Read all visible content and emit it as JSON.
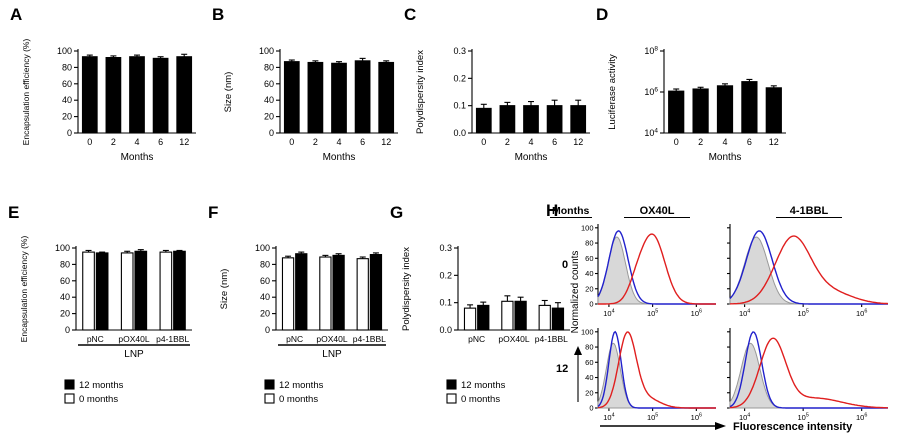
{
  "figure": {
    "background": "#ffffff"
  },
  "colors": {
    "bar_fill": "#000000",
    "open_bar_fill": "#ffffff",
    "flow_control_fill": "#d8d8d8",
    "flow_control_stroke": "#999999",
    "flow_blue": "#2121cc",
    "flow_red": "#e01f1f"
  },
  "chart_data": [
    {
      "panel": "A",
      "type": "bar",
      "title": "",
      "ylabel": "Encapsulation efficiency (%)",
      "ylabel_fs": 8.5,
      "xlabel": "Months",
      "categories": [
        "0",
        "2",
        "4",
        "6",
        "12"
      ],
      "values": [
        93,
        92,
        93,
        91,
        93
      ],
      "errors": [
        2,
        2,
        2,
        2,
        3
      ],
      "ylim": [
        0,
        100
      ],
      "yticks": [
        {
          "v": 0,
          "label": "0"
        },
        {
          "v": 20,
          "label": "20"
        },
        {
          "v": 40,
          "label": "40"
        },
        {
          "v": 60,
          "label": "60"
        },
        {
          "v": 80,
          "label": "80"
        },
        {
          "v": 100,
          "label": "100"
        }
      ]
    },
    {
      "panel": "B",
      "type": "bar",
      "title": "",
      "ylabel": "Size (nm)",
      "ylabel_fs": 9.5,
      "xlabel": "Months",
      "categories": [
        "0",
        "2",
        "4",
        "6",
        "12"
      ],
      "values": [
        87,
        86,
        85,
        88,
        86
      ],
      "errors": [
        2,
        2,
        2,
        3,
        2
      ],
      "ylim": [
        0,
        100
      ],
      "yticks": [
        {
          "v": 0,
          "label": "0"
        },
        {
          "v": 20,
          "label": "20"
        },
        {
          "v": 40,
          "label": "40"
        },
        {
          "v": 60,
          "label": "60"
        },
        {
          "v": 80,
          "label": "80"
        },
        {
          "v": 100,
          "label": "100"
        }
      ]
    },
    {
      "panel": "C",
      "type": "bar",
      "title": "",
      "ylabel": "Polydispersity index",
      "ylabel_fs": 9.5,
      "xlabel": "Months",
      "categories": [
        "0",
        "2",
        "4",
        "6",
        "12"
      ],
      "values": [
        0.09,
        0.1,
        0.1,
        0.1,
        0.1
      ],
      "errors": [
        0.015,
        0.012,
        0.015,
        0.02,
        0.02
      ],
      "ylim": [
        0,
        0.3
      ],
      "yticks": [
        {
          "v": 0,
          "label": "0.0"
        },
        {
          "v": 0.1,
          "label": "0.1"
        },
        {
          "v": 0.2,
          "label": "0.2"
        },
        {
          "v": 0.3,
          "label": "0.3"
        }
      ]
    },
    {
      "panel": "D",
      "type": "bar",
      "log": true,
      "title": "",
      "ylabel": "Luciferase activity",
      "ylabel_fs": 9.5,
      "xlabel": "Months",
      "categories": [
        "0",
        "2",
        "4",
        "6",
        "12"
      ],
      "values": [
        1100000.0,
        1400000.0,
        2000000.0,
        3200000.0,
        1600000.0
      ],
      "errors": [
        300000.0,
        300000.0,
        500000.0,
        900000.0,
        400000.0
      ],
      "ylim": [
        10000.0,
        100000000.0
      ],
      "yticks": [
        {
          "v": 10000.0,
          "label": "10^4"
        },
        {
          "v": 1000000.0,
          "label": "10^6"
        },
        {
          "v": 100000000.0,
          "label": "10^8"
        }
      ]
    },
    {
      "panel": "E",
      "type": "grouped-bar",
      "title": "",
      "ylabel": "Encapsulation efficiency (%)",
      "ylabel_fs": 8.5,
      "bracket": "LNP",
      "categories": [
        "pNC",
        "pOX40L",
        "p4-1BBL"
      ],
      "series": [
        {
          "name": "0 months",
          "fill": "#ffffff",
          "values": [
            95,
            94,
            95
          ],
          "errors": [
            2,
            2,
            2
          ]
        },
        {
          "name": "12 months",
          "fill": "#000000",
          "values": [
            94,
            96,
            96
          ],
          "errors": [
            1,
            2,
            1
          ]
        }
      ],
      "legend": [
        {
          "fill": "#000000",
          "label": "12 months"
        },
        {
          "fill": "#ffffff",
          "label": "0 months"
        }
      ],
      "ylim": [
        0,
        100
      ],
      "yticks": [
        {
          "v": 0,
          "label": "0"
        },
        {
          "v": 20,
          "label": "20"
        },
        {
          "v": 40,
          "label": "40"
        },
        {
          "v": 60,
          "label": "60"
        },
        {
          "v": 80,
          "label": "80"
        },
        {
          "v": 100,
          "label": "100"
        }
      ]
    },
    {
      "panel": "F",
      "type": "grouped-bar",
      "title": "",
      "ylabel": "Size (nm)",
      "ylabel_fs": 9.5,
      "bracket": "LNP",
      "categories": [
        "pNC",
        "pOX40L",
        "p4-1BBL"
      ],
      "series": [
        {
          "name": "0 months",
          "fill": "#ffffff",
          "values": [
            88,
            89,
            87
          ],
          "errors": [
            2,
            2,
            2
          ]
        },
        {
          "name": "12 months",
          "fill": "#000000",
          "values": [
            93,
            91,
            92
          ],
          "errors": [
            2,
            2,
            2
          ]
        }
      ],
      "legend": [
        {
          "fill": "#000000",
          "label": "12 months"
        },
        {
          "fill": "#ffffff",
          "label": "0 months"
        }
      ],
      "ylim": [
        0,
        100
      ],
      "yticks": [
        {
          "v": 0,
          "label": "0"
        },
        {
          "v": 20,
          "label": "20"
        },
        {
          "v": 40,
          "label": "40"
        },
        {
          "v": 60,
          "label": "60"
        },
        {
          "v": 80,
          "label": "80"
        },
        {
          "v": 100,
          "label": "100"
        }
      ]
    },
    {
      "panel": "G",
      "type": "grouped-bar",
      "title": "",
      "ylabel": "Polydispersity index",
      "ylabel_fs": 9.5,
      "bracket": "",
      "categories": [
        "pNC",
        "pOX40L",
        "p4-1BBL"
      ],
      "series": [
        {
          "name": "0 months",
          "fill": "#ffffff",
          "values": [
            0.08,
            0.105,
            0.09
          ],
          "errors": [
            0.012,
            0.02,
            0.018
          ]
        },
        {
          "name": "12 months",
          "fill": "#000000",
          "values": [
            0.09,
            0.105,
            0.08
          ],
          "errors": [
            0.012,
            0.015,
            0.02
          ]
        }
      ],
      "legend": [
        {
          "fill": "#000000",
          "label": "12 months"
        },
        {
          "fill": "#ffffff",
          "label": "0 months"
        }
      ],
      "ylim": [
        0,
        0.3
      ],
      "yticks": [
        {
          "v": 0,
          "label": "0.0"
        },
        {
          "v": 0.1,
          "label": "0.1"
        },
        {
          "v": 0.2,
          "label": "0.2"
        },
        {
          "v": 0.3,
          "label": "0.3"
        }
      ]
    },
    {
      "panel": "H",
      "type": "histogram-grid",
      "row_header": "Months",
      "rows": [
        "0",
        "12"
      ],
      "cols": [
        "OX40L",
        "4-1BBL"
      ],
      "ylabel": "Normalized counts",
      "xlabel": "Fluorescence intensity",
      "xlim_log": [
        3.75,
        6.45
      ],
      "xticks": [
        {
          "v": 4,
          "label": "10^4"
        },
        {
          "v": 5,
          "label": "10^5"
        },
        {
          "v": 6,
          "label": "10^6"
        }
      ],
      "yticks": [
        0,
        20,
        40,
        60,
        80,
        100
      ],
      "ymax": 105,
      "plots": [
        {
          "row": 0,
          "col": 0,
          "traces": [
            {
              "name": "control",
              "fill": "#d8d8d8",
              "color": "#999999",
              "peak": 4.18,
              "width": 0.2,
              "height": 88
            },
            {
              "name": "blue",
              "color": "#2121cc",
              "peak": 4.22,
              "width": 0.22,
              "height": 96
            },
            {
              "name": "red",
              "color": "#e01f1f",
              "peak": 5.0,
              "width": 0.28,
              "height": 90,
              "bumps": [
                {
                  "peak": 4.62,
                  "width": 0.18,
                  "height": 15
                }
              ]
            }
          ]
        },
        {
          "row": 0,
          "col": 1,
          "traces": [
            {
              "name": "control",
              "fill": "#d8d8d8",
              "color": "#999999",
              "peak": 4.2,
              "width": 0.2,
              "height": 88
            },
            {
              "name": "blue",
              "color": "#2121cc",
              "peak": 4.25,
              "width": 0.22,
              "height": 96
            },
            {
              "name": "red",
              "color": "#e01f1f",
              "peak": 4.82,
              "width": 0.3,
              "height": 85,
              "bumps": [
                {
                  "peak": 5.45,
                  "width": 0.38,
                  "height": 16
                }
              ]
            }
          ]
        },
        {
          "row": 1,
          "col": 0,
          "traces": [
            {
              "name": "control",
              "fill": "#d8d8d8",
              "color": "#999999",
              "peak": 4.1,
              "width": 0.16,
              "height": 85
            },
            {
              "name": "blue",
              "color": "#2121cc",
              "peak": 4.14,
              "width": 0.14,
              "height": 100
            },
            {
              "name": "red",
              "color": "#e01f1f",
              "peak": 4.42,
              "width": 0.2,
              "height": 95,
              "bumps": [
                {
                  "peak": 4.85,
                  "width": 0.3,
                  "height": 13
                }
              ]
            }
          ]
        },
        {
          "row": 1,
          "col": 1,
          "traces": [
            {
              "name": "control",
              "fill": "#d8d8d8",
              "color": "#999999",
              "peak": 4.1,
              "width": 0.16,
              "height": 85
            },
            {
              "name": "blue",
              "color": "#2121cc",
              "peak": 4.15,
              "width": 0.14,
              "height": 100
            },
            {
              "name": "red",
              "color": "#e01f1f",
              "peak": 4.48,
              "width": 0.22,
              "height": 88,
              "bumps": [
                {
                  "peak": 5.2,
                  "width": 0.45,
                  "height": 13
                }
              ]
            }
          ]
        }
      ]
    }
  ]
}
